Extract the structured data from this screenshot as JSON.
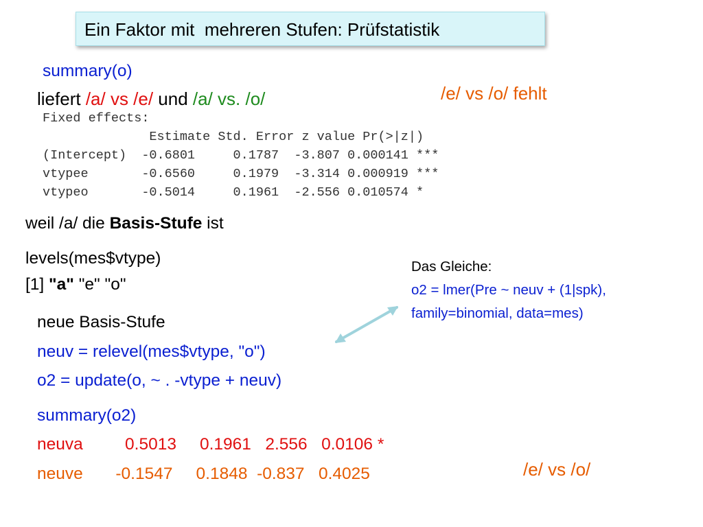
{
  "title": "Ein Faktor mit  mehreren Stufen: Prüfstatistik",
  "cmd_summary": "summary(o)",
  "liefert": {
    "word": "liefert ",
    "a1": "/a/ vs /e/",
    "und": " und ",
    "a2": "/a/ vs. /o/"
  },
  "fehlt_note": "/e/ vs /o/ fehlt",
  "fixed_effects": {
    "header": "Fixed effects:",
    "columns": "              Estimate Std. Error z value Pr(>|z|)",
    "rows": [
      "(Intercept)  -0.6801     0.1787  -3.807 0.000141 ***",
      "vtypee       -0.6560     0.1979  -3.314 0.000919 ***",
      "vtypeo       -0.5014     0.1961  -2.556 0.010574 *"
    ]
  },
  "weil": {
    "pre": "weil /a/ die ",
    "bold": "Basis-Stufe",
    "post": " ist"
  },
  "levels": {
    "cmd": "levels(mes$vtype)",
    "idx": "[1] ",
    "a": "\"a\"",
    "rest": " \"e\" \"o\""
  },
  "same_note": {
    "heading": "Das Gleiche:",
    "line1": "o2 = lmer(Pre ~ neuv + (1|spk),",
    "line2": "family=binomial, data=mes)"
  },
  "neue": {
    "heading": "neue Basis-Stufe",
    "line1": "neuv = relevel(mes$vtype, \"o\")",
    "line2": "o2 = update(o, ~ . -vtype + neuv)"
  },
  "summary2": {
    "cmd": "summary(o2)",
    "row1": "neuva         0.5013     0.1961   2.556   0.0106 *",
    "row2": "neuve       -0.1547     0.1848  -0.837   0.4025"
  },
  "evso_note": "/e/ vs /o/",
  "colors": {
    "blue": "#0a1fd1",
    "red": "#e01010",
    "green": "#1e8b1e",
    "orange": "#e65c00",
    "title_bg": "#d9f5f9",
    "arrow": "#9fd3dc"
  }
}
